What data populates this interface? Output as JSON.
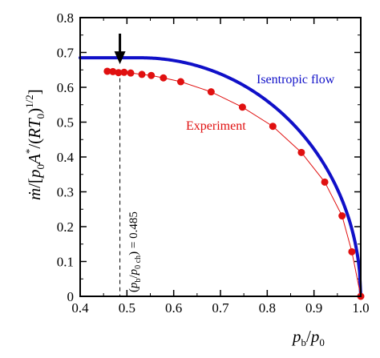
{
  "chart_data": {
    "type": "line",
    "xlabel": {
      "base": "p",
      "sub1": "b",
      "sep": "/",
      "base2": "p",
      "sub2": "0"
    },
    "ylabel": {
      "mdot": "ṁ",
      "p1": "/[",
      "p": "p",
      "sub0": "0",
      "A": "A",
      "star": "*",
      "p2": "/(",
      "RT": "RT",
      "sub0b": "0",
      "p3": ")",
      "exp": "1/2",
      "p4": "]"
    },
    "xlim": [
      0.4,
      1.0
    ],
    "ylim": [
      0,
      0.8
    ],
    "xticks": [
      0.4,
      0.5,
      0.6,
      0.7,
      0.8,
      0.9,
      1.0
    ],
    "xtick_labels": [
      "0.4",
      "0.5",
      "0.6",
      "0.7",
      "0.8",
      "0.9",
      "1.0"
    ],
    "yticks": [
      0,
      0.1,
      0.2,
      0.3,
      0.4,
      0.5,
      0.6,
      0.7,
      0.8
    ],
    "ytick_labels": [
      "0",
      "0.1",
      "0.2",
      "0.3",
      "0.4",
      "0.5",
      "0.6",
      "0.7",
      "0.8"
    ],
    "grid": false,
    "series": [
      {
        "name": "Isentropic flow",
        "color": "#1010c8",
        "gamma": 1.4,
        "critical_ratio": 0.5283,
        "choked_value": 0.6847
      },
      {
        "name": "Experiment",
        "color": "#e01010",
        "x": [
          0.458,
          0.47,
          0.482,
          0.494,
          0.508,
          0.532,
          0.552,
          0.578,
          0.615,
          0.68,
          0.747,
          0.812,
          0.873,
          0.923,
          0.96,
          0.981,
          1.0
        ],
        "y": [
          0.646,
          0.645,
          0.642,
          0.643,
          0.641,
          0.637,
          0.634,
          0.627,
          0.616,
          0.587,
          0.543,
          0.488,
          0.413,
          0.328,
          0.231,
          0.128,
          0.0
        ]
      }
    ],
    "annotation": {
      "x": 0.485,
      "label": {
        "open": "(",
        "p": "p",
        "sub_b": "b",
        "slash": "/",
        "p0": "p",
        "sub_0ch": "0 ch",
        "close": ")",
        "value": " = 0.485"
      }
    }
  }
}
